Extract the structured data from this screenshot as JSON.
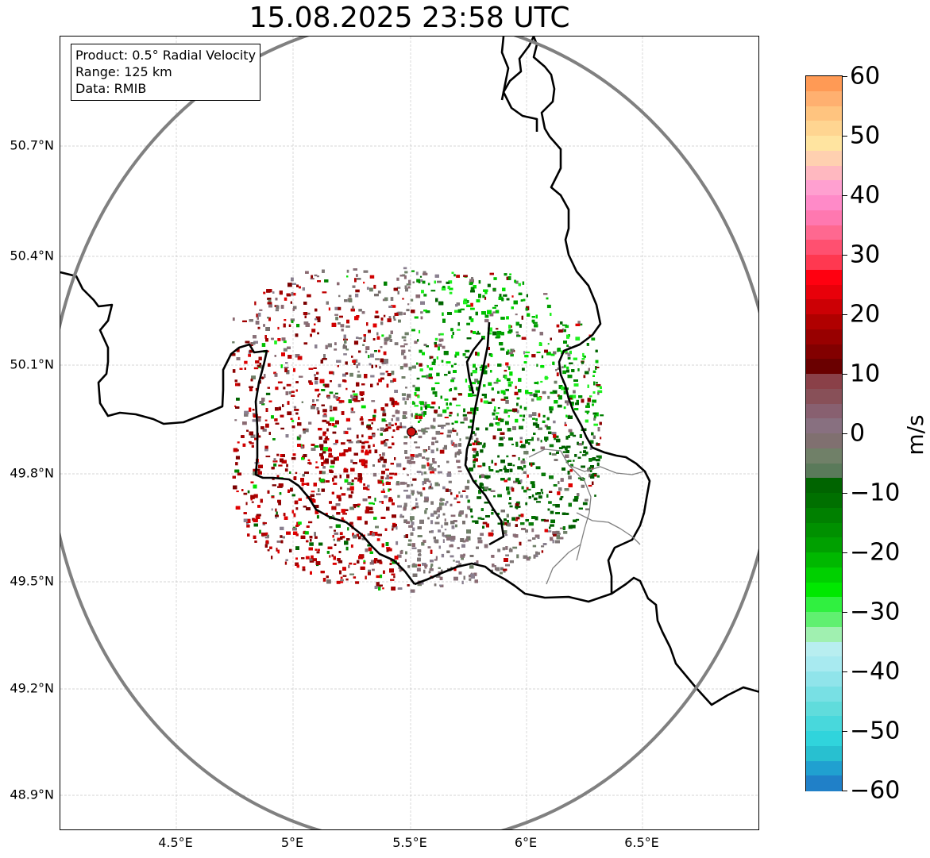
{
  "title": "15.08.2025 23:58 UTC",
  "info_box": {
    "product": "Product: 0.5° Radial Velocity",
    "range": "Range: 125 km",
    "source": "Data: RMIB"
  },
  "axes": {
    "lat_ticks": [
      "50.7°N",
      "50.4°N",
      "50.1°N",
      "49.8°N",
      "49.5°N",
      "49.2°N",
      "48.9°N"
    ],
    "lon_ticks": [
      "4.5°E",
      "5°E",
      "5.5°E",
      "6°E",
      "6.5°E"
    ]
  },
  "colorbar": {
    "label": "m/s",
    "ticks": [
      "60",
      "50",
      "40",
      "30",
      "20",
      "10",
      "0",
      "−10",
      "−20",
      "−30",
      "−40",
      "−50",
      "−60"
    ],
    "range": [
      -60,
      60
    ],
    "colors": [
      "#ff9a55",
      "#ffb070",
      "#ffc47f",
      "#ffd591",
      "#ffe4a0",
      "#ffd0b0",
      "#ffb8c0",
      "#ffa0d0",
      "#ff8ac8",
      "#ff78b0",
      "#ff6890",
      "#ff5070",
      "#ff3850",
      "#ff0010",
      "#e8000a",
      "#cc0005",
      "#b00000",
      "#980000",
      "#820000",
      "#6a0000",
      "#8a4048",
      "#885058",
      "#886070",
      "#887080",
      "#807070",
      "#708068",
      "#5a7a5a",
      "#006400",
      "#007000",
      "#008000",
      "#009000",
      "#00a000",
      "#00b800",
      "#00d000",
      "#00e800",
      "#30f040",
      "#60f070",
      "#a0f0b0",
      "#b8eef0",
      "#a8eaf0",
      "#90e4ea",
      "#78e0e4",
      "#60dcdc",
      "#48d8dc",
      "#30d4dc",
      "#28c0d0",
      "#20a0d0",
      "#2080c8"
    ]
  },
  "radar_site": {
    "color": "#d01010"
  }
}
